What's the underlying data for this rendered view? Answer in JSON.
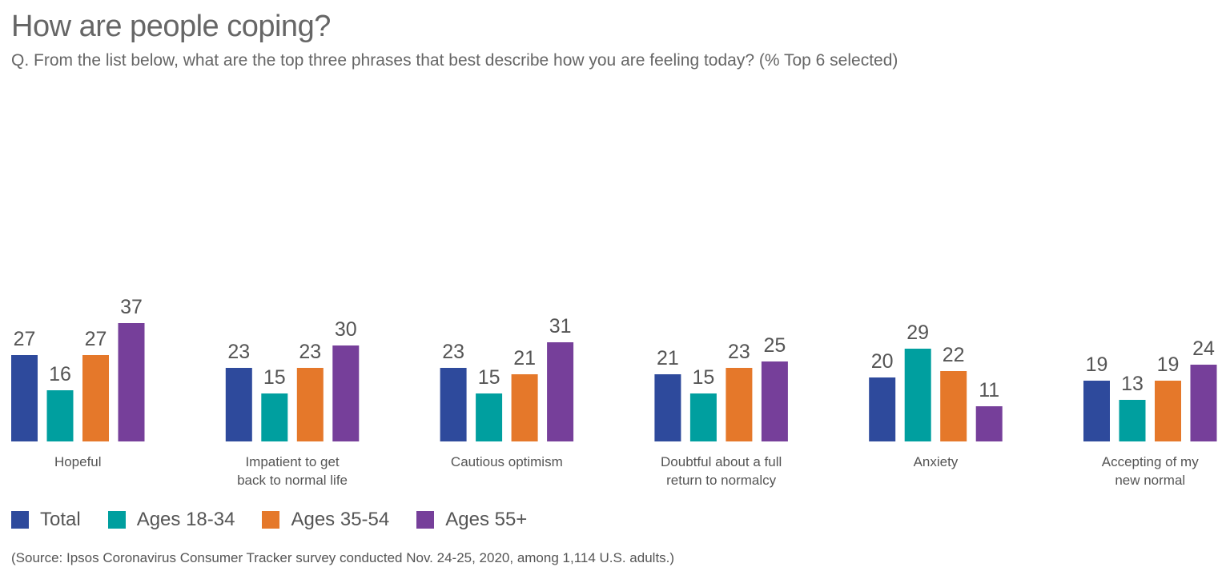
{
  "header": {
    "title": "How are people coping?",
    "subtitle": "Q. From the list below, what are the top three phrases that best describe how you are feeling today? (% Top 6 selected)"
  },
  "footer": {
    "source": "(Source: Ipsos Coronavirus Consumer Tracker survey conducted Nov. 24-25, 2020, among 1,114 U.S. adults.)"
  },
  "chart_data": {
    "type": "bar",
    "title": "How are people coping?",
    "categories": [
      [
        "Hopeful"
      ],
      [
        "Impatient to get",
        "back to normal life"
      ],
      [
        "Cautious optimism"
      ],
      [
        "Doubtful about a full",
        "return to normalcy"
      ],
      [
        "Anxiety"
      ],
      [
        "Accepting of my",
        "new normal"
      ]
    ],
    "series": [
      {
        "name": "Total",
        "color": "#2e4a9c",
        "values": [
          27,
          23,
          23,
          21,
          20,
          19
        ]
      },
      {
        "name": "Ages 18-34",
        "color": "#009f9f",
        "values": [
          16,
          15,
          15,
          15,
          29,
          13
        ]
      },
      {
        "name": "Ages 35-54",
        "color": "#e5782a",
        "values": [
          27,
          23,
          21,
          23,
          22,
          19
        ]
      },
      {
        "name": "Ages 55+",
        "color": "#763f9a",
        "values": [
          37,
          30,
          31,
          25,
          11,
          24
        ]
      }
    ],
    "ylim": [
      0,
      37
    ],
    "grid": false,
    "legend_position": "bottom-left",
    "data_labels": true
  }
}
